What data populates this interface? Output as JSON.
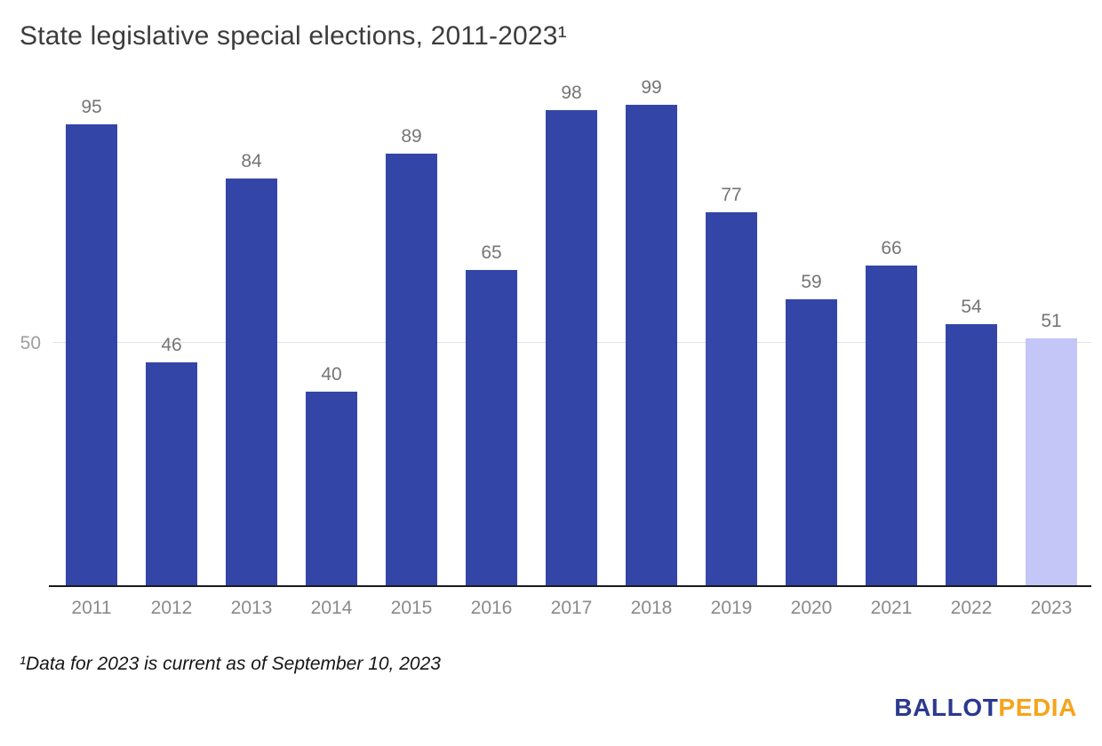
{
  "title": "State legislative special elections, 2011-2023¹",
  "footnote": "¹Data for 2023 is current as of September 10, 2023",
  "axis": {
    "tick_label": "50",
    "tick_value": 50
  },
  "logo": {
    "part1": "BALLOT",
    "part2": "PEDIA",
    "part1_color": "#2b3990",
    "part2_color": "#f7a31c"
  },
  "colors": {
    "bar_default": "#3346a8",
    "bar_highlight": "#c3c6f7",
    "gridline": "#e2e2e2",
    "axis_line": "#1b1b1b",
    "value_label": "#757575",
    "year_label": "#8a8a8a",
    "ytick_label": "#9e9e9e",
    "title": "#3c3c3c"
  },
  "chart_data": {
    "type": "bar",
    "title": "State legislative special elections, 2011-2023¹",
    "categories": [
      "2011",
      "2012",
      "2013",
      "2014",
      "2015",
      "2016",
      "2017",
      "2018",
      "2019",
      "2020",
      "2021",
      "2022",
      "2023"
    ],
    "values": [
      95,
      46,
      84,
      40,
      89,
      65,
      98,
      99,
      77,
      59,
      66,
      54,
      51
    ],
    "highlighted_category": "2023",
    "xlabel": "",
    "ylabel": "",
    "ylim": [
      0,
      106
    ],
    "yticks": [
      50
    ],
    "grid": "single horizontal gridline at y=50",
    "legend": "none",
    "data_labels": "above each bar"
  }
}
